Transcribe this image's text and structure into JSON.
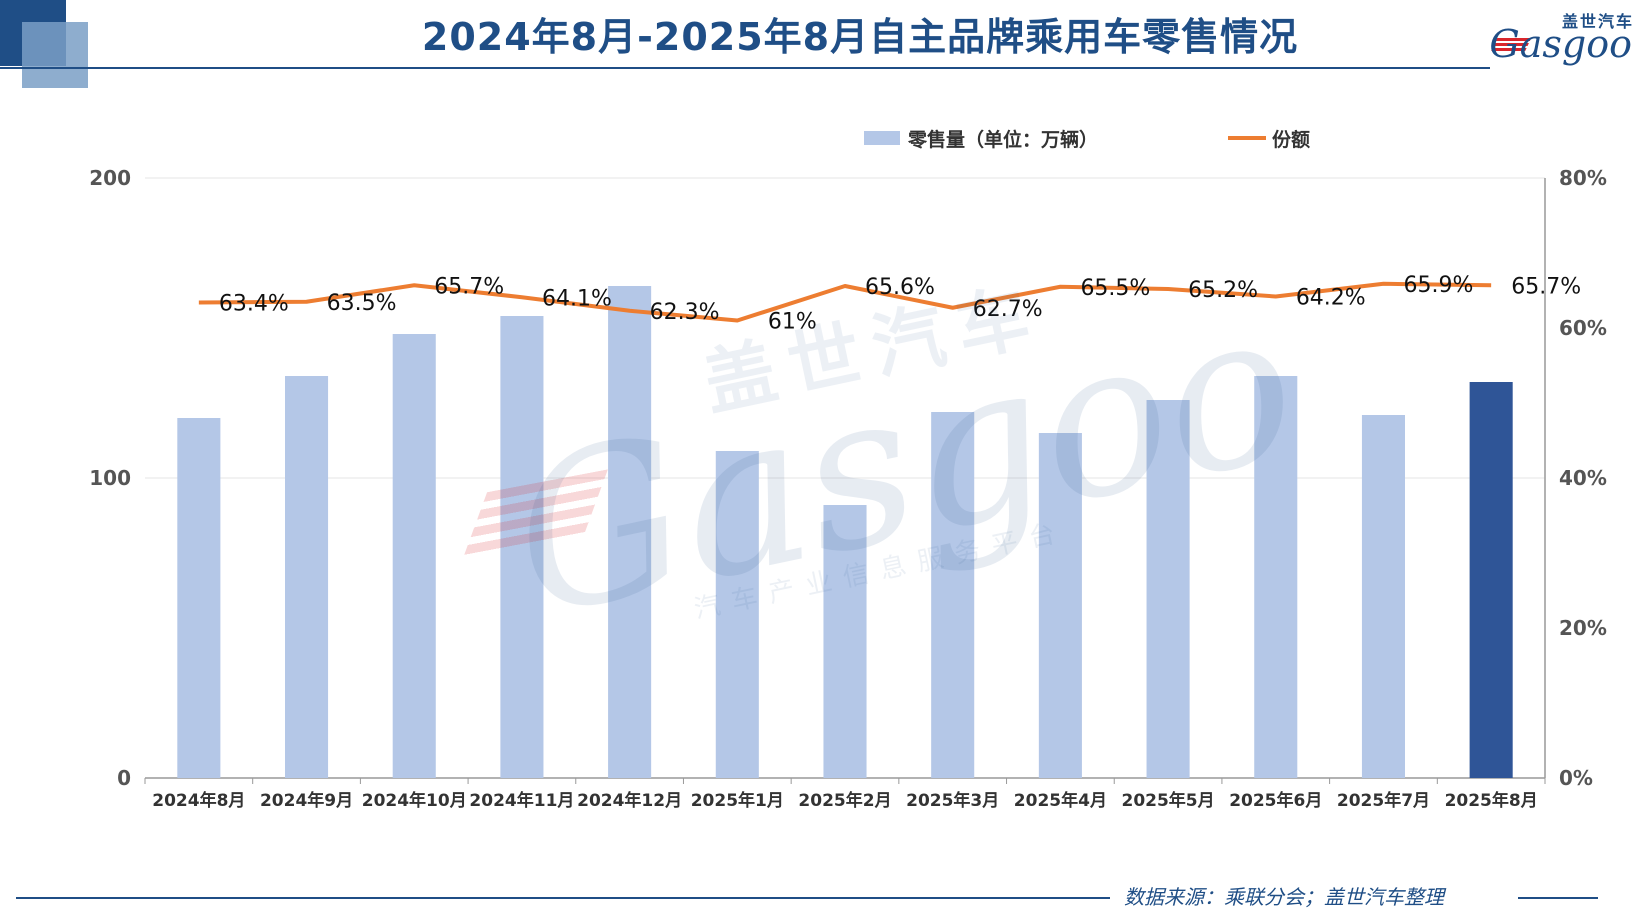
{
  "header": {
    "title": "2024年8月-2025年8月自主品牌乘用车零售情况"
  },
  "logo": {
    "cn": "盖世汽车",
    "en": "Gasgoo"
  },
  "watermark": {
    "cn": "盖世汽车",
    "en": "Gasgoo",
    "sub": "汽车产业信息服务平台"
  },
  "footer": {
    "source": "数据来源：乘联分会；盖世汽车整理"
  },
  "colors": {
    "accent": "#1f4e86",
    "bar": "#b4c7e7",
    "bar_highlight": "#2f5597",
    "line": "#ed7d31"
  },
  "chart_data": {
    "type": "bar",
    "categories": [
      "2024年8月",
      "2024年9月",
      "2024年10月",
      "2024年11月",
      "2024年12月",
      "2025年1月",
      "2025年2月",
      "2025年3月",
      "2025年4月",
      "2025年5月",
      "2025年6月",
      "2025年7月",
      "2025年8月"
    ],
    "series": [
      {
        "name": "零售量（单位：万辆）",
        "type": "bar",
        "axis": "left",
        "values": [
          120,
          134,
          148,
          154,
          164,
          109,
          91,
          122,
          115,
          126,
          134,
          121,
          132
        ],
        "highlight_index": 12
      },
      {
        "name": "份额",
        "type": "line",
        "axis": "right",
        "values": [
          63.4,
          63.5,
          65.7,
          64.1,
          62.3,
          61,
          65.6,
          62.7,
          65.5,
          65.2,
          64.2,
          65.9,
          65.7
        ],
        "labels": [
          "63.4%",
          "63.5%",
          "65.7%",
          "64.1%",
          "62.3%",
          "61%",
          "65.6%",
          "62.7%",
          "65.5%",
          "65.2%",
          "64.2%",
          "65.9%",
          "65.7%"
        ]
      }
    ],
    "y_left": {
      "min": 0,
      "max": 200,
      "ticks": [
        "0",
        "100",
        "200"
      ],
      "tick_values": [
        0,
        100,
        200
      ]
    },
    "y_right": {
      "min": 0,
      "max": 80,
      "ticks": [
        "0%",
        "20%",
        "40%",
        "60%",
        "80%"
      ],
      "tick_values": [
        0,
        20,
        40,
        60,
        80
      ]
    },
    "grid": true,
    "legend_position": "top"
  }
}
